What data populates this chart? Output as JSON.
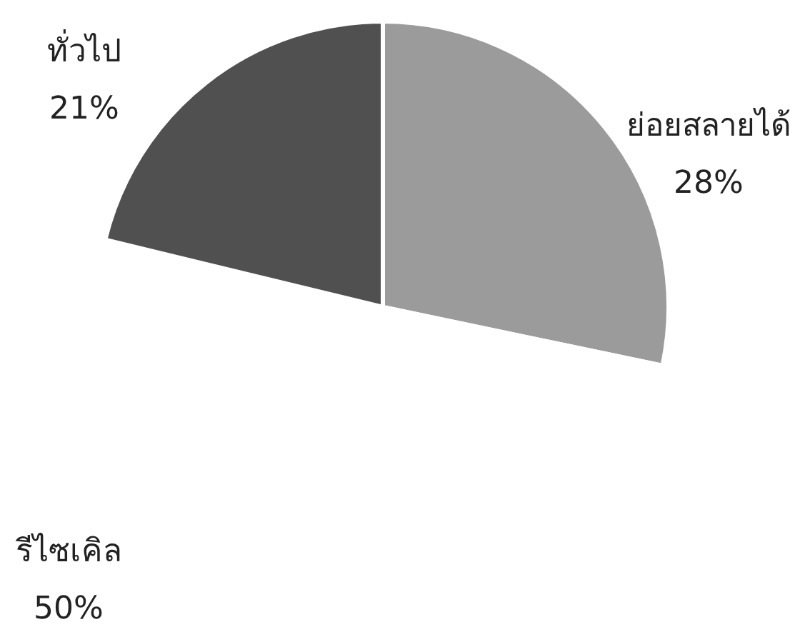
{
  "chart_data": {
    "type": "pie",
    "categories": [
      "ย่อยสลายได้",
      "รีไซเคิล",
      "ทั่วไป"
    ],
    "values": [
      28,
      50,
      21
    ],
    "colors": [
      "#9b9b9b",
      "#ffffff",
      "#505050"
    ],
    "value_labels": [
      "28%",
      "50%",
      "21%"
    ]
  }
}
